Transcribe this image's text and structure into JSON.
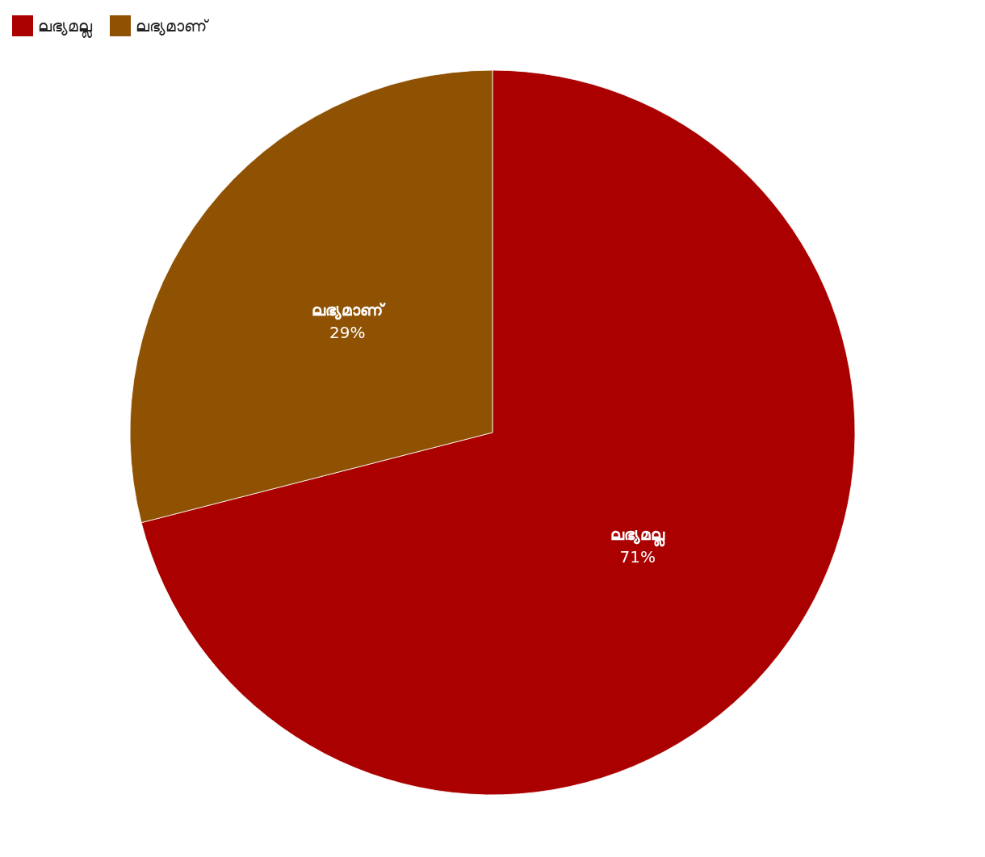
{
  "chart_data": {
    "type": "pie",
    "categories": [
      "ലഭ്യമല്ല",
      "ലഭ്യമാണ്"
    ],
    "values": [
      71,
      29
    ],
    "colors": [
      "#aa0000",
      "#8f5102"
    ],
    "value_labels": [
      "71%",
      "29%"
    ],
    "legend": "top left"
  }
}
